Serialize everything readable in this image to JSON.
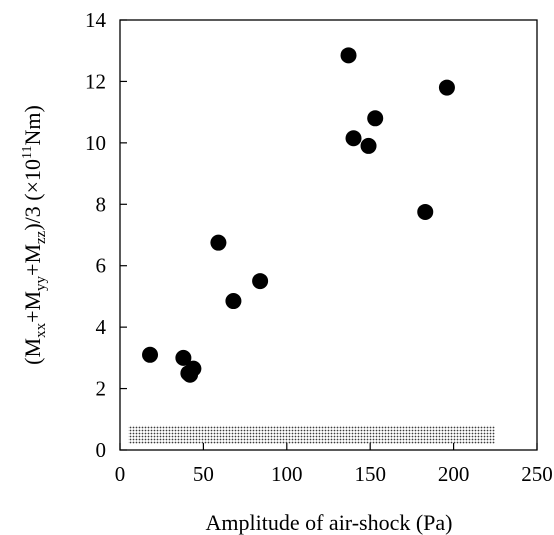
{
  "chart_data": {
    "type": "scatter",
    "xlabel": "Amplitude of air-shock (Pa)",
    "ylabel": {
      "prefix": "(M",
      "sub1": "xx",
      "plus1": "+M",
      "sub2": "yy",
      "plus2": "+M",
      "sub3": "zz",
      "suffix": ")/3 (×10",
      "exponent": "11",
      "unit": "Nm)"
    },
    "xlim": [
      0,
      250
    ],
    "ylim": [
      0,
      14
    ],
    "x_ticks": [
      0,
      50,
      100,
      150,
      200,
      250
    ],
    "y_ticks": [
      0,
      2,
      4,
      6,
      8,
      10,
      12,
      14
    ],
    "grid": false,
    "legend": "none",
    "marker_color": "#000000",
    "band": {
      "description": "dotted noise-level band",
      "x_range": [
        5,
        225
      ],
      "y_range": [
        0.2,
        0.8
      ],
      "color": "#555555"
    },
    "points": [
      {
        "x": 18,
        "y": 3.1
      },
      {
        "x": 38,
        "y": 3.0
      },
      {
        "x": 41,
        "y": 2.5
      },
      {
        "x": 42,
        "y": 2.45
      },
      {
        "x": 44,
        "y": 2.65
      },
      {
        "x": 59,
        "y": 6.75
      },
      {
        "x": 68,
        "y": 4.85
      },
      {
        "x": 84,
        "y": 5.5
      },
      {
        "x": 137,
        "y": 12.85
      },
      {
        "x": 140,
        "y": 10.15
      },
      {
        "x": 149,
        "y": 9.9
      },
      {
        "x": 153,
        "y": 10.8
      },
      {
        "x": 183,
        "y": 7.75
      },
      {
        "x": 196,
        "y": 11.8
      }
    ]
  }
}
